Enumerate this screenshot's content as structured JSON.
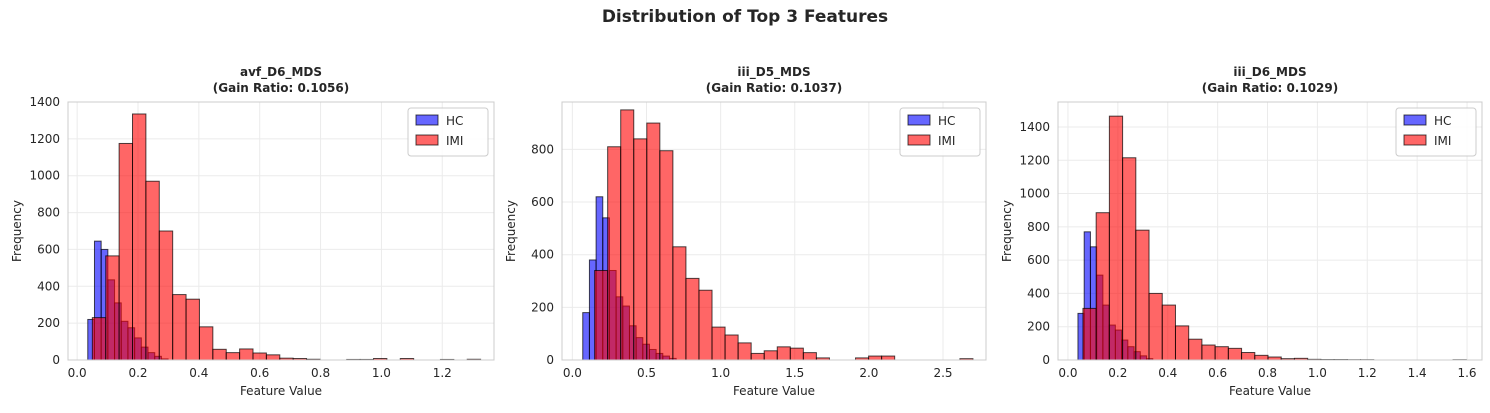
{
  "figure": {
    "title": "Distribution of Top 3 Features"
  },
  "colors": {
    "HC": "#0000ff",
    "IMI": "#ff0000",
    "edge": "#000000",
    "grid": "#ebebeb",
    "spine": "#cccccc"
  },
  "chart_data": [
    {
      "type": "histogram",
      "title": "avf_D6_MDS",
      "subtitle": "(Gain Ratio: 0.1056)",
      "xlabel": "Feature Value",
      "ylabel": "Frequency",
      "xlim": [
        -0.03,
        1.37
      ],
      "ylim": [
        0,
        1400
      ],
      "xticks": [
        0.0,
        0.2,
        0.4,
        0.6,
        0.8,
        1.0,
        1.2
      ],
      "xtick_labels": [
        "0.0",
        "0.2",
        "0.4",
        "0.6",
        "0.8",
        "1.0",
        "1.2"
      ],
      "yticks": [
        0,
        200,
        400,
        600,
        800,
        1000,
        1200,
        1400
      ],
      "ytick_labels": [
        "0",
        "200",
        "400",
        "600",
        "800",
        "1000",
        "1200",
        "1400"
      ],
      "legend": {
        "position": "upper right",
        "entries": [
          "HC",
          "IMI"
        ]
      },
      "grid": true,
      "series": [
        {
          "name": "HC",
          "bins": [
            [
              0.035,
              0.057
            ],
            [
              0.057,
              0.079
            ],
            [
              0.079,
              0.101
            ],
            [
              0.101,
              0.123
            ],
            [
              0.123,
              0.145
            ],
            [
              0.145,
              0.167
            ],
            [
              0.167,
              0.189
            ],
            [
              0.189,
              0.211
            ],
            [
              0.211,
              0.233
            ],
            [
              0.233,
              0.255
            ],
            [
              0.255,
              0.277
            ],
            [
              0.277,
              0.299
            ]
          ],
          "counts": [
            220,
            645,
            600,
            435,
            310,
            210,
            175,
            120,
            70,
            40,
            20,
            6
          ]
        },
        {
          "name": "IMI",
          "bins": [
            [
              0.05,
              0.094
            ],
            [
              0.094,
              0.138
            ],
            [
              0.138,
              0.182
            ],
            [
              0.182,
              0.226
            ],
            [
              0.226,
              0.27
            ],
            [
              0.27,
              0.314
            ],
            [
              0.314,
              0.358
            ],
            [
              0.358,
              0.402
            ],
            [
              0.402,
              0.446
            ],
            [
              0.446,
              0.49
            ],
            [
              0.49,
              0.534
            ],
            [
              0.534,
              0.578
            ],
            [
              0.578,
              0.622
            ],
            [
              0.622,
              0.666
            ],
            [
              0.666,
              0.71
            ],
            [
              0.71,
              0.754
            ],
            [
              0.754,
              0.798
            ],
            [
              0.798,
              0.842
            ],
            [
              0.842,
              0.886
            ],
            [
              0.886,
              0.93
            ],
            [
              0.93,
              0.974
            ],
            [
              0.974,
              1.018
            ],
            [
              1.018,
              1.062
            ],
            [
              1.062,
              1.106
            ],
            [
              1.106,
              1.15
            ],
            [
              1.15,
              1.194
            ],
            [
              1.194,
              1.238
            ],
            [
              1.238,
              1.282
            ],
            [
              1.282,
              1.326
            ]
          ],
          "counts": [
            230,
            565,
            1175,
            1335,
            970,
            700,
            355,
            330,
            180,
            58,
            40,
            60,
            38,
            28,
            10,
            8,
            4,
            0,
            0,
            3,
            3,
            8,
            0,
            8,
            0,
            0,
            3,
            0,
            4
          ]
        }
      ]
    },
    {
      "type": "histogram",
      "title": "iii_D5_MDS",
      "subtitle": "(Gain Ratio: 0.1037)",
      "xlabel": "Feature Value",
      "ylabel": "Frequency",
      "xlim": [
        -0.07,
        2.79
      ],
      "ylim": [
        0,
        980
      ],
      "xticks": [
        0.0,
        0.5,
        1.0,
        1.5,
        2.0,
        2.5
      ],
      "xtick_labels": [
        "0.0",
        "0.5",
        "1.0",
        "1.5",
        "2.0",
        "2.5"
      ],
      "yticks": [
        0,
        200,
        400,
        600,
        800
      ],
      "ytick_labels": [
        "0",
        "200",
        "400",
        "600",
        "800"
      ],
      "legend": {
        "position": "upper right",
        "entries": [
          "HC",
          "IMI"
        ]
      },
      "grid": true,
      "series": [
        {
          "name": "HC",
          "bins": [
            [
              0.07,
              0.115
            ],
            [
              0.115,
              0.16
            ],
            [
              0.16,
              0.205
            ],
            [
              0.205,
              0.25
            ],
            [
              0.25,
              0.295
            ],
            [
              0.295,
              0.34
            ],
            [
              0.34,
              0.385
            ],
            [
              0.385,
              0.43
            ],
            [
              0.43,
              0.475
            ],
            [
              0.475,
              0.52
            ],
            [
              0.52,
              0.565
            ],
            [
              0.565,
              0.61
            ],
            [
              0.61,
              0.655
            ],
            [
              0.655,
              0.7
            ]
          ],
          "counts": [
            180,
            380,
            620,
            540,
            340,
            240,
            205,
            130,
            85,
            60,
            40,
            25,
            15,
            6
          ]
        },
        {
          "name": "IMI",
          "bins": [
            [
              0.15,
              0.238
            ],
            [
              0.238,
              0.326
            ],
            [
              0.326,
              0.414
            ],
            [
              0.414,
              0.502
            ],
            [
              0.502,
              0.59
            ],
            [
              0.59,
              0.678
            ],
            [
              0.678,
              0.766
            ],
            [
              0.766,
              0.854
            ],
            [
              0.854,
              0.942
            ],
            [
              0.942,
              1.03
            ],
            [
              1.03,
              1.118
            ],
            [
              1.118,
              1.206
            ],
            [
              1.206,
              1.294
            ],
            [
              1.294,
              1.382
            ],
            [
              1.382,
              1.47
            ],
            [
              1.47,
              1.558
            ],
            [
              1.558,
              1.646
            ],
            [
              1.646,
              1.734
            ],
            [
              1.734,
              1.822
            ],
            [
              1.822,
              1.91
            ],
            [
              1.91,
              1.998
            ],
            [
              1.998,
              2.086
            ],
            [
              2.086,
              2.174
            ],
            [
              2.174,
              2.262
            ],
            [
              2.262,
              2.35
            ],
            [
              2.35,
              2.438
            ],
            [
              2.438,
              2.526
            ],
            [
              2.526,
              2.614
            ],
            [
              2.614,
              2.702
            ]
          ],
          "counts": [
            340,
            810,
            950,
            840,
            900,
            795,
            430,
            310,
            265,
            125,
            95,
            65,
            25,
            35,
            50,
            45,
            28,
            8,
            0,
            0,
            8,
            15,
            15,
            0,
            0,
            0,
            0,
            0,
            5
          ]
        }
      ]
    },
    {
      "type": "histogram",
      "title": "iii_D6_MDS",
      "subtitle": "(Gain Ratio: 0.1029)",
      "xlabel": "Feature Value",
      "ylabel": "Frequency",
      "xlim": [
        -0.04,
        1.66
      ],
      "ylim": [
        0,
        1550
      ],
      "xticks": [
        0.0,
        0.2,
        0.4,
        0.6,
        0.8,
        1.0,
        1.2,
        1.4,
        1.6
      ],
      "xtick_labels": [
        "0.0",
        "0.2",
        "0.4",
        "0.6",
        "0.8",
        "1.0",
        "1.2",
        "1.4",
        "1.6"
      ],
      "yticks": [
        0,
        200,
        400,
        600,
        800,
        1000,
        1200,
        1400
      ],
      "ytick_labels": [
        "0",
        "200",
        "400",
        "600",
        "800",
        "1000",
        "1200",
        "1400"
      ],
      "legend": {
        "position": "upper right",
        "entries": [
          "HC",
          "IMI"
        ]
      },
      "grid": true,
      "series": [
        {
          "name": "HC",
          "bins": [
            [
              0.04,
              0.065
            ],
            [
              0.065,
              0.09
            ],
            [
              0.09,
              0.115
            ],
            [
              0.115,
              0.14
            ],
            [
              0.14,
              0.165
            ],
            [
              0.165,
              0.19
            ],
            [
              0.19,
              0.215
            ],
            [
              0.215,
              0.24
            ],
            [
              0.24,
              0.265
            ],
            [
              0.265,
              0.29
            ],
            [
              0.29,
              0.315
            ],
            [
              0.315,
              0.34
            ]
          ],
          "counts": [
            280,
            770,
            680,
            510,
            330,
            210,
            180,
            120,
            80,
            50,
            25,
            8
          ]
        },
        {
          "name": "IMI",
          "bins": [
            [
              0.06,
              0.113
            ],
            [
              0.113,
              0.166
            ],
            [
              0.166,
              0.219
            ],
            [
              0.219,
              0.272
            ],
            [
              0.272,
              0.325
            ],
            [
              0.325,
              0.378
            ],
            [
              0.378,
              0.431
            ],
            [
              0.431,
              0.484
            ],
            [
              0.484,
              0.537
            ],
            [
              0.537,
              0.59
            ],
            [
              0.59,
              0.643
            ],
            [
              0.643,
              0.696
            ],
            [
              0.696,
              0.749
            ],
            [
              0.749,
              0.802
            ],
            [
              0.802,
              0.855
            ],
            [
              0.855,
              0.908
            ],
            [
              0.908,
              0.961
            ],
            [
              0.961,
              1.014
            ],
            [
              1.014,
              1.067
            ],
            [
              1.067,
              1.12
            ],
            [
              1.12,
              1.173
            ],
            [
              1.173,
              1.226
            ],
            [
              1.226,
              1.279
            ],
            [
              1.279,
              1.332
            ],
            [
              1.332,
              1.385
            ],
            [
              1.385,
              1.438
            ],
            [
              1.438,
              1.491
            ],
            [
              1.491,
              1.544
            ],
            [
              1.544,
              1.597
            ]
          ],
          "counts": [
            310,
            885,
            1465,
            1215,
            780,
            400,
            330,
            205,
            125,
            90,
            80,
            70,
            45,
            28,
            18,
            8,
            10,
            4,
            3,
            3,
            2,
            2,
            0,
            0,
            0,
            0,
            0,
            0,
            2
          ]
        }
      ]
    }
  ]
}
